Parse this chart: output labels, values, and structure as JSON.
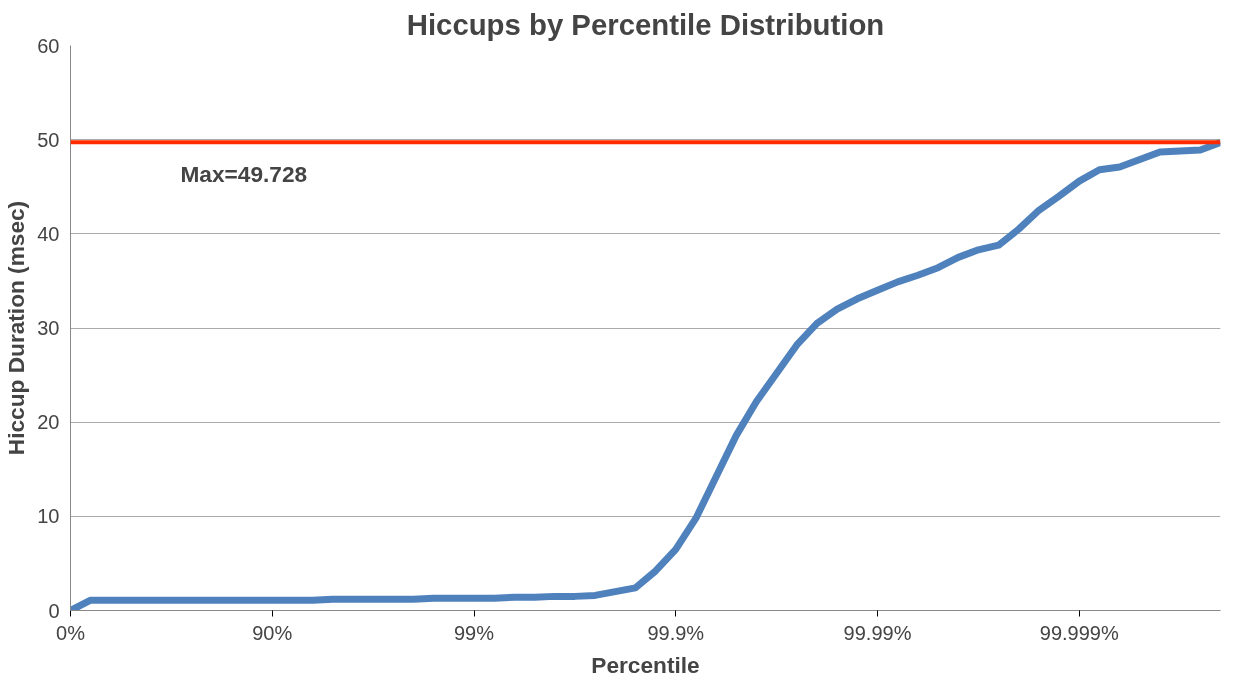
{
  "chart_data": {
    "type": "line",
    "title": "Hiccups by Percentile Distribution",
    "xlabel": "Percentile",
    "ylabel": "Hiccup Duration (msec)",
    "categories": [
      "0%",
      null,
      null,
      null,
      null,
      null,
      null,
      null,
      null,
      null,
      "90%",
      null,
      null,
      null,
      null,
      null,
      null,
      null,
      null,
      null,
      "99%",
      null,
      null,
      null,
      null,
      null,
      null,
      null,
      null,
      null,
      "99.9%",
      null,
      null,
      null,
      null,
      null,
      null,
      null,
      null,
      null,
      "99.99%",
      null,
      null,
      null,
      null,
      null,
      null,
      null,
      null,
      null,
      "99.999%",
      null,
      null,
      null,
      null,
      null,
      null,
      null
    ],
    "series": [
      {
        "color": "#4f81bd",
        "values": [
          0,
          1.1,
          1.1,
          1.1,
          1.1,
          1.1,
          1.1,
          1.1,
          1.1,
          1.1,
          1.1,
          1.1,
          1.1,
          1.2,
          1.2,
          1.2,
          1.2,
          1.2,
          1.3,
          1.3,
          1.3,
          1.3,
          1.4,
          1.4,
          1.5,
          1.5,
          1.6,
          2.0,
          2.4,
          4.2,
          6.5,
          9.8,
          14.2,
          18.6,
          22.2,
          25.2,
          28.2,
          30.5,
          32.0,
          33.1,
          34.0,
          34.9,
          35.6,
          36.4,
          37.5,
          38.3,
          38.8,
          40.5,
          42.5,
          44.0,
          45.6,
          46.8,
          47.1,
          47.9,
          48.7,
          48.8,
          48.9,
          49.7
        ]
      }
    ],
    "ylim": [
      0,
      60
    ],
    "yticks": [
      0,
      10,
      20,
      30,
      40,
      50,
      60
    ],
    "ref_lines": [
      {
        "axis": "y",
        "value": 49.728,
        "label": "Max=49.728",
        "color": "#ff2a00"
      }
    ],
    "grid": "y",
    "marker": "none",
    "line_style": "solid"
  }
}
